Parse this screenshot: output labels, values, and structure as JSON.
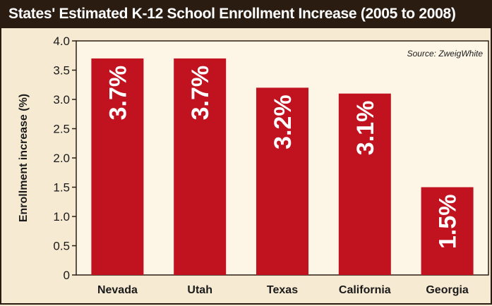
{
  "chart_data": {
    "type": "bar",
    "title": "States' Estimated K-12 School Enrollment Increase (2005 to 2008)",
    "source": "Source: ZweigWhite",
    "xlabel": "",
    "ylabel": "Enrollment increase (%)",
    "categories": [
      "Nevada",
      "Utah",
      "Texas",
      "California",
      "Georgia"
    ],
    "values": [
      3.7,
      3.7,
      3.2,
      3.1,
      1.5
    ],
    "data_labels": [
      "3.7%",
      "3.7%",
      "3.2%",
      "3.1%",
      "1.5%"
    ],
    "ylim": [
      0,
      4.0
    ],
    "yticks": [
      "0",
      "0.5",
      "1.0",
      "1.5",
      "2.0",
      "2.5",
      "3.0",
      "3.5",
      "4.0"
    ],
    "grid": false,
    "colors": {
      "bar": "#c1121f",
      "background": "#f7ead2",
      "title_bar": "#2b1c12"
    }
  }
}
